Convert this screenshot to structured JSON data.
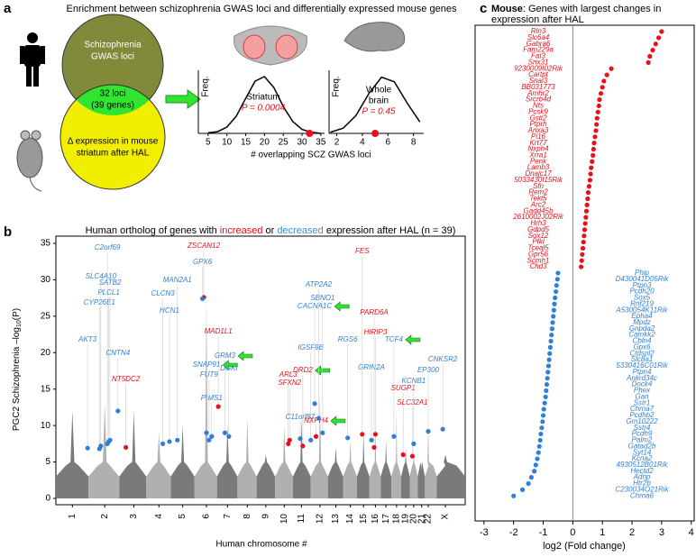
{
  "panel_labels": [
    "a",
    "b",
    "c"
  ],
  "panel_a": {
    "title": "Enrichment between schizophrenia GWAS loci and differentially expressed mouse genes",
    "venn": {
      "top": [
        "Schizophrenia",
        "GWAS loci"
      ],
      "overlap": [
        "32 loci",
        "(39 genes)"
      ],
      "bottom": [
        "Δ expression in mouse",
        "striatum after HAL"
      ]
    },
    "xlabel": "# overlapping SCZ GWAS loci"
  },
  "chart_data": [
    {
      "type": "density",
      "label": [
        "Striatum"
      ],
      "p_label": "P = 0.0004",
      "ylabel": "Freq.",
      "x": [
        5,
        7.5,
        10,
        12.5,
        15,
        17.5,
        20,
        22.5,
        25,
        27.5,
        30,
        32.5,
        35
      ],
      "values": [
        0.01,
        0.03,
        0.11,
        0.3,
        0.61,
        0.91,
        0.99,
        0.8,
        0.47,
        0.21,
        0.07,
        0.02,
        0
      ],
      "observed": 32,
      "xlim": [
        2.4,
        36
      ],
      "xticks": [
        5,
        10,
        15,
        20,
        25,
        30,
        35
      ],
      "ylim": [
        0,
        1.1
      ],
      "color": "#000",
      "observed_color": "#e8101a"
    },
    {
      "type": "density",
      "label": [
        "Whole",
        "brain"
      ],
      "p_label": "P = 0.45",
      "ylabel": "Freq.",
      "x": [
        1.5,
        2.5,
        3.5,
        4.5,
        5.5,
        6.5,
        7.5,
        8.5
      ],
      "values": [
        0.02,
        0.09,
        0.31,
        0.69,
        0.98,
        0.9,
        0.53,
        0.2
      ],
      "observed": 5,
      "xlim": [
        1.4,
        8.8
      ],
      "xticks": [
        2,
        4,
        6,
        8
      ],
      "ylim": [
        0,
        1.1
      ],
      "color": "#000",
      "observed_color": "#e8101a"
    },
    {
      "type": "manhattan",
      "title_parts": [
        "Human ortholog of genes with ",
        "increased",
        " or ",
        "decreased",
        " expression after HAL (n = 39)"
      ],
      "title_colors": [
        "#000",
        "#e8101a",
        "#000",
        "#3a8fd9",
        "#000"
      ],
      "ylabel": "PGC2 Schizophrenia –log",
      "ylabel_sub": "10",
      "ylabel_end": "(P)",
      "xlabel": "Human chromosome #",
      "ylim": [
        0,
        36.5
      ],
      "yticks": [
        0,
        5,
        10,
        15,
        20,
        25,
        30,
        35
      ],
      "xlim": [
        0,
        3.1
      ],
      "xticks": [
        {
          "value": 0.125,
          "label": "1"
        },
        {
          "value": 0.37,
          "label": "2"
        },
        {
          "value": 0.59,
          "label": "3"
        },
        {
          "value": 0.78,
          "label": "4"
        },
        {
          "value": 0.96,
          "label": "5"
        },
        {
          "value": 1.14,
          "label": "6"
        },
        {
          "value": 1.3,
          "label": "7"
        },
        {
          "value": 1.45,
          "label": "8"
        },
        {
          "value": 1.59,
          "label": "9"
        },
        {
          "value": 1.73,
          "label": "10"
        },
        {
          "value": 1.86,
          "label": "11"
        },
        {
          "value": 2.0,
          "label": "12"
        },
        {
          "value": 2.12,
          "label": "13"
        },
        {
          "value": 2.23,
          "label": "14"
        },
        {
          "value": 2.33,
          "label": "15"
        },
        {
          "value": 2.42,
          "label": "16"
        },
        {
          "value": 2.5,
          "label": "17"
        },
        {
          "value": 2.58,
          "label": "18"
        },
        {
          "value": 2.65,
          "label": "19"
        },
        {
          "value": 2.71,
          "label": "20"
        },
        {
          "value": 2.77,
          "label": "21"
        },
        {
          "value": 2.82,
          "label": "22"
        },
        {
          "value": 2.95,
          "label": "X"
        }
      ],
      "chromosome_max": [
        12,
        13,
        12,
        9,
        10,
        27,
        10,
        11,
        6,
        10,
        11,
        14,
        7,
        8,
        9,
        10,
        8,
        12,
        7,
        7,
        4,
        10,
        6
      ],
      "background_colors": [
        "#7a7a7a",
        "#b0b0b0"
      ],
      "gene_names": [
        "AKT3",
        "C2orf69",
        "CYP26E1",
        "PLCL1",
        "SATB2",
        "SLC4A10",
        "CNTN4",
        "NT5DC2",
        "CLCN3",
        "MAN2A1",
        "HCN1",
        "ZSCAN12",
        "GPX6",
        "MAD1L1",
        "PIMS1",
        "GRM3",
        "SNAP91",
        "FUT9",
        "DGKI",
        "IGSF9B",
        "ARL3",
        "SFXN2",
        "DRD2",
        "C11orf87",
        "NXPH4",
        "CACNA1C",
        "SBNO1",
        "ATP2A2",
        "RGS6",
        "GRIN2A",
        "FES",
        "PARD6A",
        "HIRIP3",
        "TCF4",
        "SUGP1",
        "SLC32A1",
        "KCNB1",
        "EP300",
        "CNKSR2"
      ],
      "gene_x": [
        0.24,
        0.39,
        0.33,
        0.4,
        0.41,
        0.34,
        0.47,
        0.53,
        0.81,
        0.92,
        0.86,
        1.12,
        1.11,
        1.23,
        1.18,
        1.28,
        1.14,
        1.16,
        1.31,
        1.93,
        1.76,
        1.77,
        1.87,
        1.85,
        1.97,
        1.96,
        2.02,
        1.99,
        2.21,
        2.39,
        2.32,
        2.41,
        2.42,
        2.56,
        2.63,
        2.7,
        2.71,
        2.82,
        2.93
      ],
      "gene_values": [
        6.9,
        7.5,
        6.8,
        7.8,
        8,
        7.2,
        12,
        7,
        7.5,
        8,
        7.8,
        27.6,
        27.4,
        12.6,
        8.5,
        9,
        9,
        8,
        8.5,
        8,
        7.5,
        8,
        7.2,
        8.2,
        8.5,
        13,
        9,
        11,
        8.3,
        8,
        8.8,
        7,
        8.8,
        8.5,
        6,
        5.8,
        7.5,
        9.2,
        9.5
      ],
      "gene_colors": [
        "#2f7fd6",
        "#2f7fd6",
        "#2f7fd6",
        "#2f7fd6",
        "#2f7fd6",
        "#2f7fd6",
        "#2f7fd6",
        "#e8101a",
        "#2f7fd6",
        "#2f7fd6",
        "#2f7fd6",
        "#e8101a",
        "#2f7fd6",
        "#e8101a",
        "#2f7fd6",
        "#2f7fd6",
        "#2f7fd6",
        "#2f7fd6",
        "#2f7fd6",
        "#2f7fd6",
        "#e8101a",
        "#e8101a",
        "#e8101a",
        "#2f7fd6",
        "#e8101a",
        "#2f7fd6",
        "#2f7fd6",
        "#2f7fd6",
        "#2f7fd6",
        "#2f7fd6",
        "#e8101a",
        "#e8101a",
        "#e8101a",
        "#2f7fd6",
        "#e8101a",
        "#e8101a",
        "#2f7fd6",
        "#2f7fd6",
        "#2f7fd6"
      ]
    },
    {
      "type": "dotplot",
      "title_parts": [
        "Mouse",
        ": Genes with largest changes in"
      ],
      "title_line2": "expression  after HAL",
      "xlim": [
        -3.3,
        4.1
      ],
      "xticks": [
        -3,
        -2,
        -1,
        0,
        1,
        2,
        3,
        4
      ],
      "xlabel": "log2 (Fold change)",
      "up_color": "#e8101a",
      "down_color": "#2f7fd6",
      "up_genes": [
        "Rln3",
        "Slc6a4",
        "Gabra6",
        "Fam229a",
        "Fat3",
        "Snx31",
        "9230009I02Rik",
        "Cartpt",
        "Snai3",
        "BB031773",
        "Amhr2",
        "Srcrb4d",
        "Nts",
        "Pcsk9",
        "Gstt2",
        "Ptprh",
        "Anxa3",
        "Pi16",
        "Krt77",
        "Nxph4",
        "Xrra1",
        "Penk",
        "Lamb3",
        "Dnajc17",
        "5033430I15Rik",
        "Sfn",
        "Rem2",
        "Tekt5",
        "Arc2",
        "Gadd45b",
        "2610002J02Rik",
        "Hrh3",
        "Gdpd5",
        "Sox12",
        "Pfkl",
        "Tceal5",
        "Gpr56",
        "Scmh1",
        "Chd3"
      ],
      "up_values": [
        3.0,
        2.9,
        2.8,
        2.7,
        2.6,
        2.55,
        1.3,
        1.15,
        1.05,
        1.0,
        0.95,
        0.9,
        0.88,
        0.85,
        0.82,
        0.8,
        0.78,
        0.75,
        0.72,
        0.7,
        0.68,
        0.65,
        0.62,
        0.6,
        0.58,
        0.55,
        0.52,
        0.5,
        0.48,
        0.46,
        0.44,
        0.42,
        0.4,
        0.38,
        0.36,
        0.34,
        0.32,
        0.3,
        0.28
      ],
      "down_genes": [
        "Phip",
        "D430041D05Rik",
        "Ptpn3",
        "Pcdh20",
        "Sox5",
        "Rnf219",
        "A530054K11Rik",
        "Epha4",
        "Mpdz",
        "Gnpda2",
        "Camkk2",
        "Cbln4",
        "Gpx6",
        "Ctdspl2",
        "Slc8a1",
        "5330416C01Rik",
        "Ptpn4",
        "Ankrd34c",
        "Dock4",
        "Phex",
        "Gan",
        "Sstr1",
        "Chrna7",
        "Pcdhb2",
        "Gm10222",
        "Sstr4",
        "Pcdh9",
        "Palm2",
        "Gatad2b",
        "Syt14",
        "Kcna2",
        "4930512B01Rik",
        "Hectd2",
        "Adnp",
        "Htr2b",
        "C230034O21Rik",
        "Chrna6"
      ],
      "down_values": [
        -0.5,
        -0.52,
        -0.55,
        -0.57,
        -0.6,
        -0.62,
        -0.64,
        -0.66,
        -0.68,
        -0.7,
        -0.72,
        -0.74,
        -0.76,
        -0.78,
        -0.8,
        -0.82,
        -0.84,
        -0.86,
        -0.88,
        -0.9,
        -0.92,
        -0.95,
        -0.98,
        -1.0,
        -1.02,
        -1.05,
        -1.08,
        -1.1,
        -1.13,
        -1.16,
        -1.2,
        -1.25,
        -1.3,
        -1.4,
        -1.5,
        -1.7,
        -2.0
      ]
    }
  ]
}
